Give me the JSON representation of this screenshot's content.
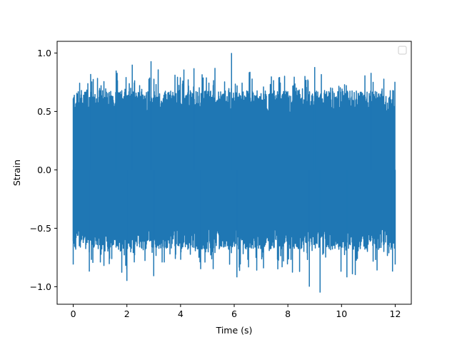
{
  "chart_data": {
    "type": "line",
    "title": "",
    "xlabel": "Time (s)",
    "ylabel": "Strain",
    "xlim": [
      -0.6,
      12.6
    ],
    "ylim": [
      -1.15,
      1.1
    ],
    "x_ticks": [
      0,
      2,
      4,
      6,
      8,
      10,
      12
    ],
    "x_tick_labels": [
      "0",
      "2",
      "4",
      "6",
      "8",
      "10",
      "12"
    ],
    "y_ticks": [
      -1.0,
      -0.5,
      0.0,
      0.5,
      1.0
    ],
    "y_tick_labels": [
      "−1.0",
      "−0.5",
      "0.0",
      "0.5",
      "1.0"
    ],
    "grid": false,
    "legend": {
      "location": "upper-right",
      "entries": []
    },
    "series": [
      {
        "color": "#1f77b4",
        "x_range": [
          0,
          12
        ],
        "approx_range": [
          -1.05,
          1.0
        ],
        "typical_envelope": [
          -0.5,
          0.5
        ],
        "peaks": [
          {
            "x": 0.0,
            "y": -0.81
          },
          {
            "x": 0.6,
            "y": -0.87
          },
          {
            "x": 0.65,
            "y": 0.82
          },
          {
            "x": 1.6,
            "y": 0.85
          },
          {
            "x": 2.0,
            "y": -0.95
          },
          {
            "x": 2.2,
            "y": 0.9
          },
          {
            "x": 2.9,
            "y": 0.93
          },
          {
            "x": 3.0,
            "y": -0.91
          },
          {
            "x": 4.5,
            "y": 0.87
          },
          {
            "x": 4.75,
            "y": -0.85
          },
          {
            "x": 5.9,
            "y": 1.0
          },
          {
            "x": 6.1,
            "y": -0.92
          },
          {
            "x": 8.8,
            "y": -1.0
          },
          {
            "x": 9.0,
            "y": 0.88
          },
          {
            "x": 9.2,
            "y": -1.05
          },
          {
            "x": 10.2,
            "y": -0.92
          },
          {
            "x": 11.1,
            "y": 0.83
          },
          {
            "x": 11.9,
            "y": -0.87
          },
          {
            "x": 12.0,
            "y": -0.81
          }
        ]
      }
    ]
  }
}
